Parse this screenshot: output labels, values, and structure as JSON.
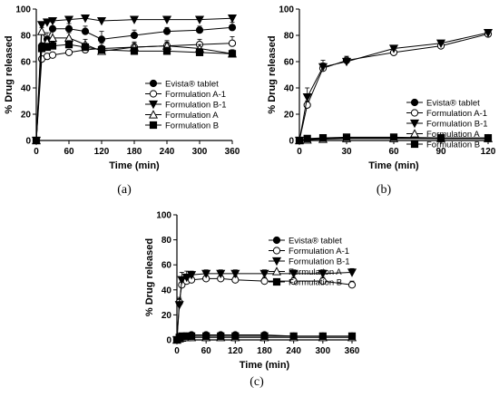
{
  "chart_data": [
    {
      "type": "line",
      "panel_label": "(a)",
      "xlabel": "Time (min)",
      "ylabel": "% Drug released",
      "xlim": [
        0,
        360
      ],
      "ylim": [
        0,
        100
      ],
      "xticks": [
        0,
        60,
        120,
        180,
        240,
        300,
        360
      ],
      "yticks": [
        0,
        20,
        40,
        60,
        80,
        100
      ],
      "legend_position": "right",
      "series": [
        {
          "name": "Evista® tablet",
          "marker": "circle-filled",
          "x": [
            0,
            10,
            20,
            30,
            60,
            90,
            120,
            180,
            240,
            300,
            360
          ],
          "y": [
            0,
            72,
            77,
            85,
            85,
            83,
            77,
            80,
            83,
            84,
            86
          ],
          "err": [
            0,
            2,
            5,
            5,
            4,
            4,
            6,
            4,
            3,
            3,
            4
          ]
        },
        {
          "name": "Formulation A-1",
          "marker": "circle-open",
          "x": [
            0,
            10,
            20,
            30,
            60,
            90,
            120,
            180,
            240,
            300,
            360
          ],
          "y": [
            0,
            62,
            64,
            65,
            67,
            69,
            70,
            71,
            72,
            73,
            74
          ],
          "err": [
            0,
            2,
            2,
            2,
            2,
            3,
            4,
            4,
            4,
            4,
            5
          ]
        },
        {
          "name": "Formulation B-1",
          "marker": "triangle-down-filled",
          "x": [
            0,
            10,
            20,
            30,
            60,
            90,
            120,
            180,
            240,
            300,
            360
          ],
          "y": [
            0,
            88,
            90,
            91,
            92,
            93,
            91,
            92,
            92,
            92,
            93
          ],
          "err": [
            0,
            2,
            2,
            2,
            1,
            1,
            1,
            1,
            1,
            1,
            1
          ]
        },
        {
          "name": "Formulation A",
          "marker": "triangle-up-open",
          "x": [
            0,
            10,
            20,
            30,
            60,
            90,
            120,
            180,
            240,
            300,
            360
          ],
          "y": [
            0,
            83,
            75,
            78,
            78,
            73,
            68,
            71,
            72,
            70,
            66
          ],
          "err": [
            0,
            3,
            4,
            6,
            4,
            4,
            4,
            3,
            3,
            3,
            3
          ]
        },
        {
          "name": "Formulation B",
          "marker": "square-filled",
          "x": [
            0,
            10,
            20,
            30,
            60,
            90,
            120,
            180,
            240,
            300,
            360
          ],
          "y": [
            0,
            70,
            71,
            72,
            73,
            71,
            69,
            68,
            68,
            67,
            66
          ],
          "err": [
            0,
            3,
            3,
            3,
            3,
            3,
            3,
            3,
            3,
            3,
            3
          ]
        }
      ]
    },
    {
      "type": "line",
      "panel_label": "(b)",
      "xlabel": "Time (min)",
      "ylabel": "% Drug released",
      "xlim": [
        0,
        120
      ],
      "ylim": [
        0,
        100
      ],
      "xticks": [
        0,
        30,
        60,
        90,
        120
      ],
      "yticks": [
        0,
        20,
        40,
        60,
        80,
        100
      ],
      "legend_position": "right",
      "series": [
        {
          "name": "Evista® tablet",
          "marker": "circle-filled",
          "x": [
            0,
            5,
            15,
            30,
            60,
            90,
            120
          ],
          "y": [
            0,
            1,
            1.5,
            2,
            2,
            1.5,
            1.5
          ],
          "err": [
            0,
            0.5,
            0.5,
            0.5,
            0.5,
            0.5,
            0.5
          ]
        },
        {
          "name": "Formulation A-1",
          "marker": "circle-open",
          "x": [
            0,
            5,
            15,
            30,
            60,
            90,
            120
          ],
          "y": [
            0,
            27,
            55,
            61,
            67,
            72,
            81
          ],
          "err": [
            0,
            3,
            4,
            3,
            2,
            2,
            2
          ]
        },
        {
          "name": "Formulation B-1",
          "marker": "triangle-down-filled",
          "x": [
            0,
            5,
            15,
            30,
            60,
            90,
            120
          ],
          "y": [
            0,
            33,
            56,
            60,
            70,
            74,
            82
          ],
          "err": [
            0,
            7,
            5,
            4,
            2,
            2,
            2
          ]
        },
        {
          "name": "Formulation A",
          "marker": "triangle-up-open",
          "x": [
            0,
            5,
            15,
            30,
            60,
            90,
            120
          ],
          "y": [
            0,
            0.5,
            1,
            1.5,
            1.5,
            1.5,
            1.5
          ],
          "err": [
            0,
            0.5,
            0.5,
            0.5,
            0.5,
            0.5,
            0.5
          ]
        },
        {
          "name": "Formulation B",
          "marker": "square-filled",
          "x": [
            0,
            5,
            15,
            30,
            60,
            90,
            120
          ],
          "y": [
            0,
            1.5,
            2,
            2.5,
            2.5,
            2,
            2
          ],
          "err": [
            0,
            0.5,
            0.5,
            0.5,
            0.5,
            0.5,
            0.5
          ]
        }
      ]
    },
    {
      "type": "line",
      "panel_label": "(c)",
      "xlabel": "Time (min)",
      "ylabel": "% Drug released",
      "xlim": [
        0,
        360
      ],
      "ylim": [
        0,
        100
      ],
      "xticks": [
        0,
        60,
        120,
        180,
        240,
        300,
        360
      ],
      "yticks": [
        0,
        20,
        40,
        60,
        80,
        100
      ],
      "legend_position": "right",
      "series": [
        {
          "name": "Evista® tablet",
          "marker": "circle-filled",
          "x": [
            0,
            5,
            10,
            20,
            30,
            60,
            90,
            120,
            180,
            240,
            300,
            360
          ],
          "y": [
            0,
            1,
            2,
            3,
            4,
            4,
            4,
            4,
            4,
            3,
            3,
            3
          ],
          "err": [
            0,
            0.5,
            0.5,
            0.5,
            0.5,
            0.5,
            0.5,
            0.5,
            0.5,
            0.5,
            0.5,
            0.5
          ]
        },
        {
          "name": "Formulation A-1",
          "marker": "circle-open",
          "x": [
            0,
            5,
            10,
            20,
            30,
            60,
            90,
            120,
            180,
            240,
            300,
            360
          ],
          "y": [
            0,
            30,
            44,
            47,
            48,
            49,
            49,
            48,
            47,
            47,
            47,
            44
          ],
          "err": [
            0,
            4,
            4,
            3,
            3,
            3,
            3,
            3,
            3,
            3,
            3,
            3
          ]
        },
        {
          "name": "Formulation B-1",
          "marker": "triangle-down-filled",
          "x": [
            0,
            5,
            10,
            20,
            30,
            60,
            90,
            120,
            180,
            240,
            300,
            360
          ],
          "y": [
            0,
            28,
            48,
            50,
            52,
            53,
            53,
            53,
            53,
            53,
            53,
            54
          ],
          "err": [
            0,
            5,
            6,
            5,
            3,
            3,
            3,
            3,
            3,
            3,
            3,
            3
          ]
        },
        {
          "name": "Formulation A",
          "marker": "triangle-up-open",
          "x": [
            0,
            5,
            10,
            20,
            30,
            60,
            90,
            120,
            180,
            240,
            300,
            360
          ],
          "y": [
            0,
            1,
            1.5,
            2,
            2,
            2,
            2,
            2,
            2,
            2,
            2,
            2
          ],
          "err": [
            0,
            0.5,
            0.5,
            0.5,
            0.5,
            0.5,
            0.5,
            0.5,
            0.5,
            0.5,
            0.5,
            0.5
          ]
        },
        {
          "name": "Formulation B",
          "marker": "square-filled",
          "x": [
            0,
            5,
            10,
            20,
            30,
            60,
            90,
            120,
            180,
            240,
            300,
            360
          ],
          "y": [
            0,
            2,
            3,
            3,
            3,
            3,
            3,
            3,
            3,
            3,
            3,
            3
          ],
          "err": [
            0,
            0.5,
            0.5,
            0.5,
            0.5,
            0.5,
            0.5,
            0.5,
            0.5,
            0.5,
            0.5,
            0.5
          ]
        }
      ]
    }
  ]
}
